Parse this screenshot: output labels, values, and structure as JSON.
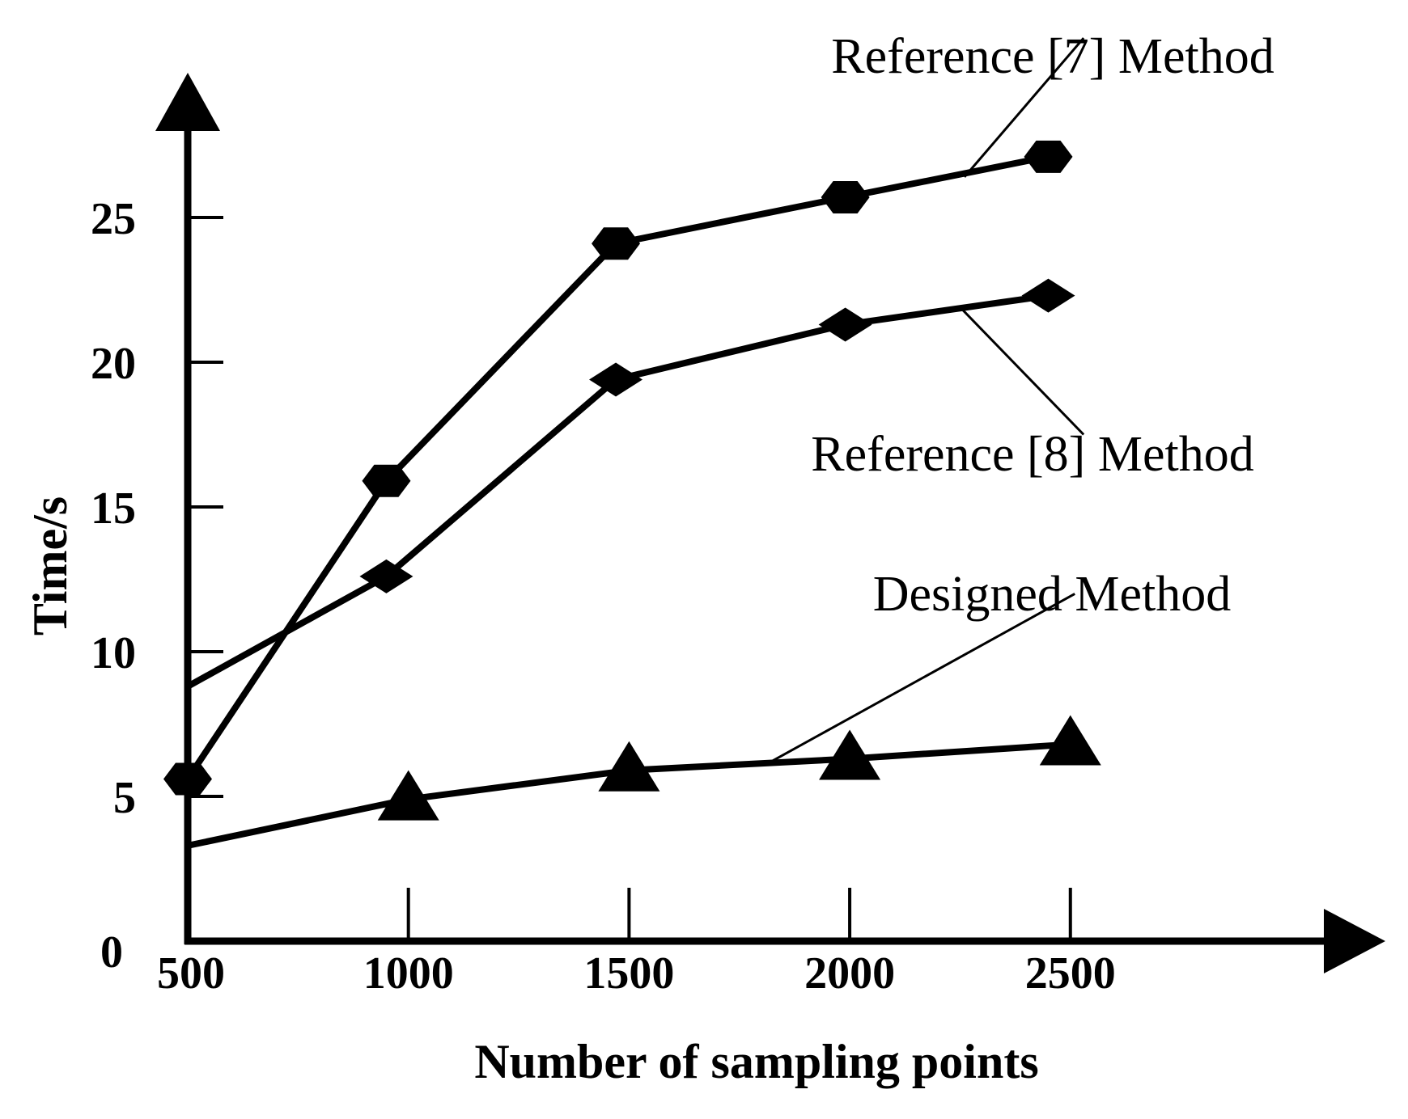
{
  "chart_data": {
    "type": "line",
    "title": "",
    "xlabel": "Number of sampling points",
    "ylabel": "Time/s",
    "x_ticks": [
      "500",
      "1000",
      "1500",
      "2000",
      "2500"
    ],
    "y_ticks": [
      "0",
      "5",
      "10",
      "15",
      "20",
      "25"
    ],
    "xlim": [
      500,
      3100
    ],
    "ylim": [
      0,
      30
    ],
    "grid": false,
    "series": [
      {
        "name": "Reference [7]  Method",
        "marker": "hexagon",
        "color": "#000000",
        "line": {
          "x": [
            500,
            950,
            1470,
            1990,
            2450
          ],
          "y": [
            5.6,
            15.9,
            24.1,
            25.7,
            27.1
          ]
        },
        "x": [
          500,
          950,
          1470,
          1990,
          2450
        ],
        "y": [
          5.6,
          15.9,
          24.1,
          25.7,
          27.1
        ]
      },
      {
        "name": "Reference [8]  Method",
        "marker": "diamond",
        "color": "#000000",
        "line": {
          "x": [
            500,
            950,
            1470,
            1990,
            2450
          ],
          "y": [
            8.8,
            12.6,
            19.4,
            21.3,
            22.3
          ]
        },
        "x": [
          950,
          1470,
          1990,
          2450
        ],
        "y": [
          12.6,
          19.4,
          21.3,
          22.3
        ]
      },
      {
        "name": "Designed  Method",
        "marker": "triangle",
        "color": "#000000",
        "line": {
          "x": [
            500,
            1000,
            1500,
            2000,
            2500
          ],
          "y": [
            3.3,
            4.9,
            5.9,
            6.3,
            6.8
          ]
        },
        "x": [
          1000,
          1500,
          2000,
          2500
        ],
        "y": [
          4.9,
          5.9,
          6.3,
          6.8
        ]
      }
    ]
  }
}
